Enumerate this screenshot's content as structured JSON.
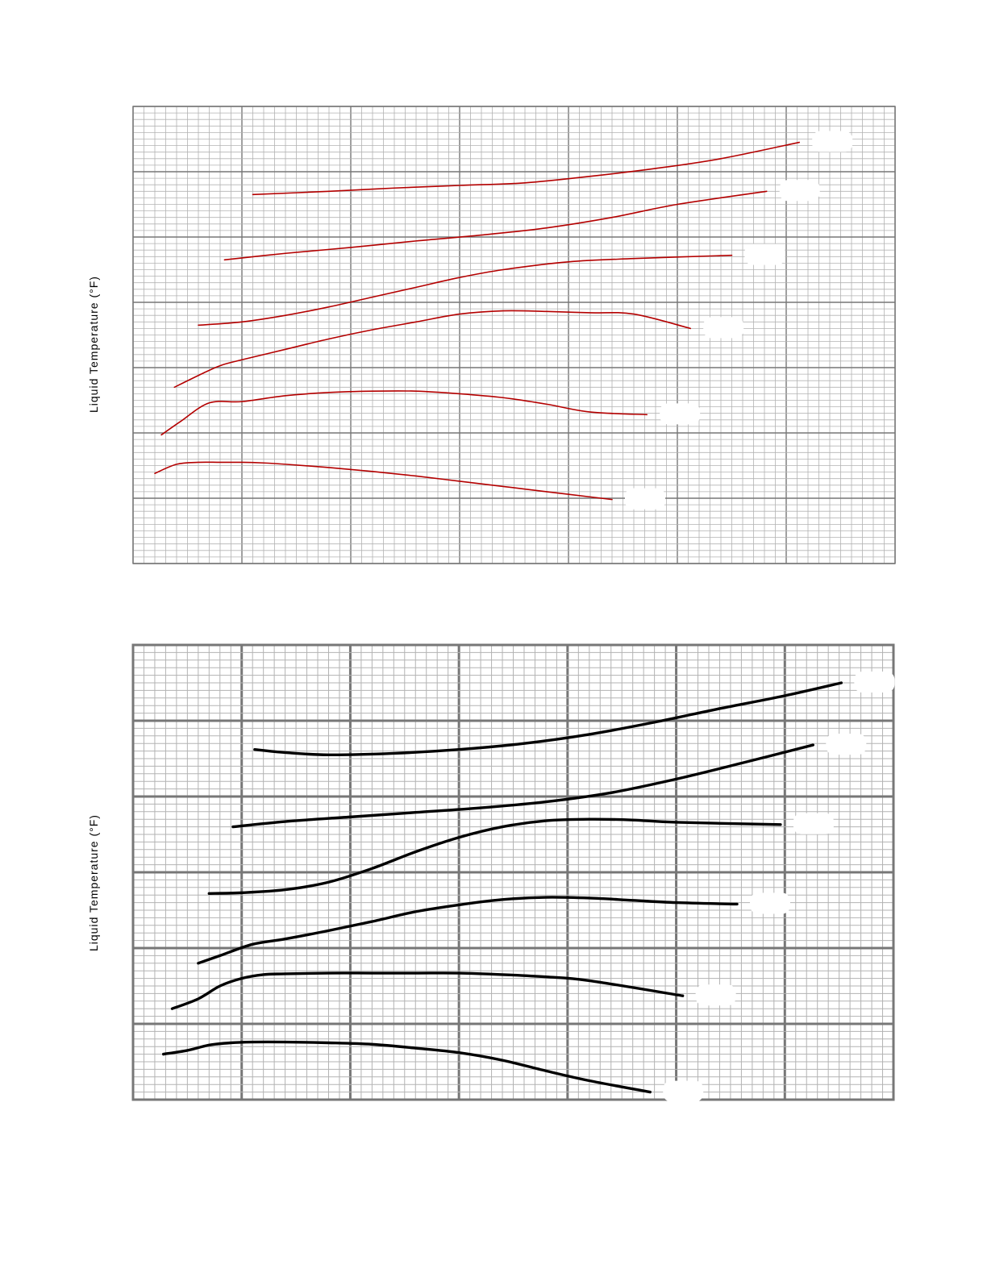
{
  "charts": [
    {
      "ylabel": "Liquid Temperature (°F)",
      "line_color": "#b40000",
      "grid_color": "#a0a0a0"
    },
    {
      "ylabel": "Liquid Temperature (°F)",
      "line_color": "#000000",
      "grid_color": "#8a8a8a"
    }
  ],
  "chart_data": [
    {
      "type": "line",
      "ylabel": "Liquid Temperature (°F)",
      "xlabel": "",
      "xlim": [
        0,
        35
      ],
      "ylim": [
        0,
        7
      ],
      "grid": true,
      "series": [
        {
          "x": [
            5.5,
            9,
            12,
            15,
            18,
            21,
            24,
            27,
            30.6
          ],
          "y": [
            5.65,
            5.7,
            5.75,
            5.79,
            5.83,
            5.93,
            6.05,
            6.2,
            6.45
          ]
        },
        {
          "x": [
            4.2,
            7,
            10,
            13,
            16,
            19,
            22,
            25,
            29.1
          ],
          "y": [
            4.65,
            4.75,
            4.84,
            4.94,
            5.03,
            5.14,
            5.3,
            5.5,
            5.7
          ]
        },
        {
          "x": [
            3,
            5,
            7,
            9,
            11,
            13,
            15,
            17,
            20,
            23,
            27.5
          ],
          "y": [
            3.65,
            3.7,
            3.8,
            3.93,
            4.08,
            4.23,
            4.38,
            4.5,
            4.62,
            4.67,
            4.72
          ]
        },
        {
          "x": [
            1.9,
            3,
            4,
            5,
            7,
            9,
            11,
            13,
            15,
            17,
            19,
            21,
            23,
            25.6
          ],
          "y": [
            2.7,
            2.88,
            3.03,
            3.12,
            3.28,
            3.44,
            3.58,
            3.7,
            3.82,
            3.87,
            3.86,
            3.84,
            3.82,
            3.6
          ]
        },
        {
          "x": [
            1.3,
            2.2,
            3.5,
            5,
            7,
            9,
            11,
            13,
            15,
            17,
            19,
            21,
            23.6
          ],
          "y": [
            1.97,
            2.18,
            2.46,
            2.48,
            2.57,
            2.62,
            2.64,
            2.64,
            2.6,
            2.54,
            2.44,
            2.32,
            2.28
          ]
        },
        {
          "x": [
            1.0,
            2.0,
            3.0,
            4.0,
            5.0,
            6.0,
            7.0,
            9.0,
            11.0,
            13.0,
            15.0,
            17.0,
            19.0,
            21.0,
            22.0
          ],
          "y": [
            1.38,
            1.52,
            1.55,
            1.55,
            1.55,
            1.54,
            1.52,
            1.47,
            1.41,
            1.34,
            1.26,
            1.18,
            1.1,
            1.02,
            0.98
          ]
        }
      ]
    },
    {
      "type": "line",
      "ylabel": "Liquid Temperature (°F)",
      "xlabel": "",
      "xlim": [
        0,
        35
      ],
      "ylim": [
        0,
        6
      ],
      "grid": true,
      "series": [
        {
          "x": [
            5.6,
            7,
            9,
            12,
            15,
            18,
            21,
            24,
            27,
            30,
            32.6
          ],
          "y": [
            4.62,
            4.58,
            4.55,
            4.57,
            4.62,
            4.7,
            4.82,
            4.98,
            5.16,
            5.33,
            5.5
          ]
        },
        {
          "x": [
            4.6,
            7,
            10,
            13,
            16,
            19,
            22,
            25,
            28,
            31.3
          ],
          "y": [
            3.6,
            3.67,
            3.73,
            3.79,
            3.85,
            3.93,
            4.05,
            4.23,
            4.44,
            4.68
          ]
        },
        {
          "x": [
            3.5,
            5,
            7,
            9,
            11,
            13,
            15,
            17,
            19,
            21,
            23,
            25,
            29.8
          ],
          "y": [
            2.72,
            2.73,
            2.77,
            2.87,
            3.05,
            3.27,
            3.46,
            3.6,
            3.68,
            3.7,
            3.69,
            3.66,
            3.63
          ]
        },
        {
          "x": [
            3.0,
            4.0,
            5.5,
            7,
            9,
            11,
            13,
            15,
            17,
            19,
            21,
            23,
            25,
            27.8
          ],
          "y": [
            1.8,
            1.9,
            2.05,
            2.12,
            2.23,
            2.35,
            2.48,
            2.57,
            2.64,
            2.67,
            2.66,
            2.63,
            2.6,
            2.58
          ]
        },
        {
          "x": [
            1.8,
            3.0,
            4.0,
            5.0,
            6.0,
            7.0,
            9.0,
            11.0,
            13.0,
            15.0,
            17.0,
            19.0,
            21.0,
            25.3
          ],
          "y": [
            1.2,
            1.33,
            1.5,
            1.6,
            1.65,
            1.66,
            1.67,
            1.67,
            1.67,
            1.67,
            1.65,
            1.62,
            1.57,
            1.37
          ]
        },
        {
          "x": [
            1.4,
            2.5,
            3.5,
            4.5,
            5.5,
            7.0,
            9.0,
            11.0,
            13.0,
            15.0,
            17.0,
            19.0,
            21.0,
            23.8
          ],
          "y": [
            0.6,
            0.65,
            0.72,
            0.75,
            0.76,
            0.76,
            0.75,
            0.73,
            0.68,
            0.62,
            0.52,
            0.38,
            0.25,
            0.1
          ]
        }
      ]
    }
  ]
}
